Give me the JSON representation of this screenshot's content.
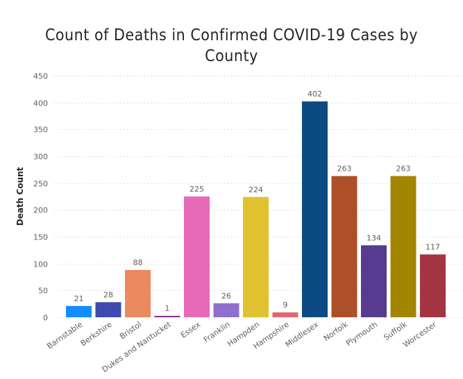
{
  "chart_data": {
    "type": "bar",
    "title": "Count of Deaths in Confirmed COVID-19 Cases by County",
    "title_lines": [
      "Count of Deaths in Confirmed COVID-19 Cases by",
      "County"
    ],
    "xlabel": "",
    "ylabel": "Death Count",
    "ylim": [
      0,
      450
    ],
    "yticks": [
      0,
      50,
      100,
      150,
      200,
      250,
      300,
      350,
      400,
      450
    ],
    "grid": true,
    "legend": "none",
    "categories": [
      "Barnstable",
      "Berkshire",
      "Bristol",
      "Dukes and Nantucket",
      "Essex",
      "Franklin",
      "Hampden",
      "Hampshire",
      "Middlesex",
      "Norfolk",
      "Plymouth",
      "Suffolk",
      "Worcester"
    ],
    "values": [
      21,
      28,
      88,
      1,
      225,
      26,
      224,
      9,
      402,
      263,
      134,
      263,
      117
    ],
    "colors": [
      "#118dff",
      "#3e4aad",
      "#eb895f",
      "#8b2e8f",
      "#e66ab8",
      "#8f6fcd",
      "#e0c130",
      "#e0666f",
      "#0b4a82",
      "#ad4f28",
      "#563b90",
      "#a38600",
      "#a33441"
    ]
  }
}
